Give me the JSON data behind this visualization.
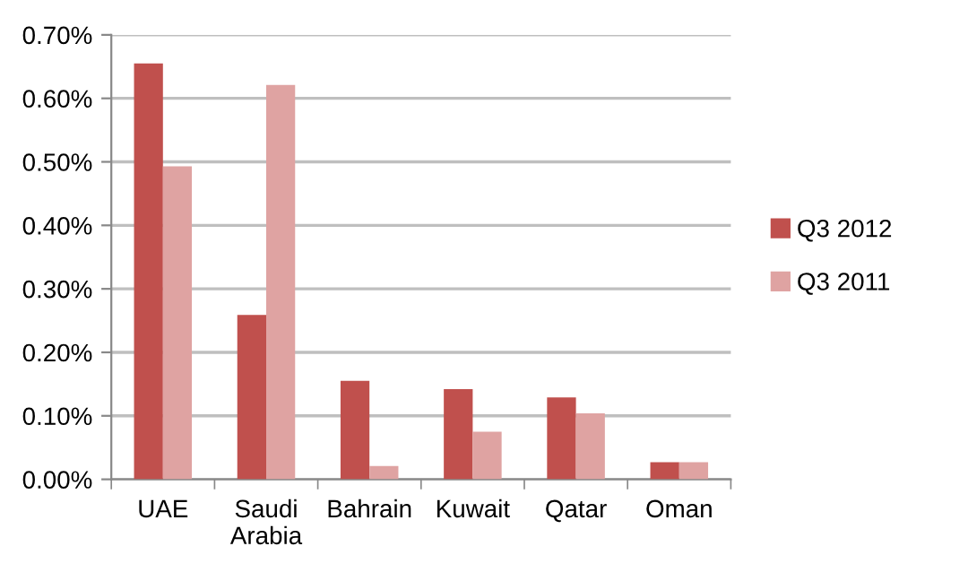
{
  "chart_data": {
    "type": "bar",
    "categories": [
      "UAE",
      "Saudi\nArabia",
      "Bahrain",
      "Kuwait",
      "Qatar",
      "Oman"
    ],
    "series": [
      {
        "name": "Q3 2012",
        "color": "#c0504d",
        "values": [
          0.655,
          0.259,
          0.155,
          0.142,
          0.129,
          0.027
        ]
      },
      {
        "name": "Q3 2011",
        "color": "#dfa3a2",
        "values": [
          0.493,
          0.621,
          0.021,
          0.075,
          0.104,
          0.027
        ]
      }
    ],
    "ylim": [
      0,
      0.7
    ],
    "yticks": [
      {
        "value": 0,
        "label": "0.00%"
      },
      {
        "value": 0.1,
        "label": "0.10%"
      },
      {
        "value": 0.2,
        "label": "0.20%"
      },
      {
        "value": 0.3,
        "label": "0.30%"
      },
      {
        "value": 0.4,
        "label": "0.40%"
      },
      {
        "value": 0.5,
        "label": "0.50%"
      },
      {
        "value": 0.6,
        "label": "0.60%"
      },
      {
        "value": 0.7,
        "label": "0.70%"
      }
    ],
    "grid": "y",
    "legend": "right"
  }
}
